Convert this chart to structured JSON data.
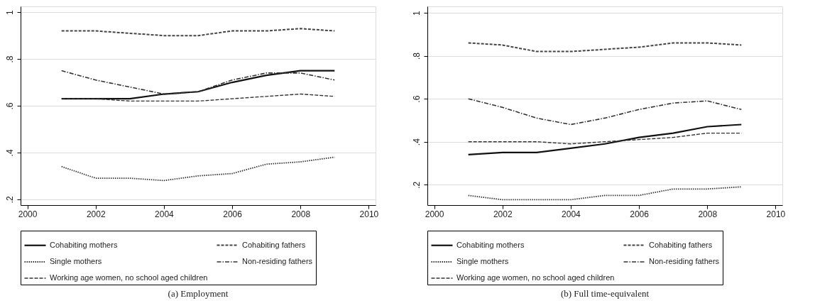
{
  "chart_data": [
    {
      "type": "line",
      "title": "(a) Employment",
      "x": [
        2001,
        2002,
        2003,
        2004,
        2005,
        2006,
        2007,
        2008,
        2009
      ],
      "xlim": [
        1999.8,
        2010.2
      ],
      "xticks": [
        2000,
        2002,
        2004,
        2006,
        2008,
        2010
      ],
      "ylim": [
        0.175,
        1.025
      ],
      "yticks": [
        {
          "value": 0.2,
          "label": ".2"
        },
        {
          "value": 0.4,
          "label": ".4"
        },
        {
          "value": 0.6,
          "label": ".6"
        },
        {
          "value": 0.8,
          "label": ".8"
        },
        1
      ],
      "grid": "y",
      "legend": "bottom",
      "series": [
        {
          "name": "Cohabiting mothers",
          "color": "#111111",
          "line_style": "solid",
          "values": [
            0.63,
            0.63,
            0.63,
            0.65,
            0.66,
            0.7,
            0.73,
            0.75,
            0.75
          ]
        },
        {
          "name": "Cohabiting fathers",
          "color": "#444444",
          "line_style": "dashed",
          "values": [
            0.92,
            0.92,
            0.91,
            0.9,
            0.9,
            0.92,
            0.92,
            0.93,
            0.92
          ]
        },
        {
          "name": "Single mothers",
          "color": "#333333",
          "line_style": "dotted",
          "values": [
            0.34,
            0.29,
            0.29,
            0.28,
            0.3,
            0.31,
            0.35,
            0.36,
            0.38
          ]
        },
        {
          "name": "Non-residing fathers",
          "color": "#333333",
          "line_style": "dashdot",
          "values": [
            0.75,
            0.71,
            0.68,
            0.65,
            0.66,
            0.71,
            0.74,
            0.74,
            0.71
          ]
        },
        {
          "name": "Working age women, no school aged children",
          "color": "#333333",
          "line_style": "longdash",
          "values": [
            0.63,
            0.63,
            0.62,
            0.62,
            0.62,
            0.63,
            0.64,
            0.65,
            0.64
          ]
        }
      ]
    },
    {
      "type": "line",
      "title": "(b) Full time-equivalent",
      "x": [
        2001,
        2002,
        2003,
        2004,
        2005,
        2006,
        2007,
        2008,
        2009
      ],
      "xlim": [
        1999.8,
        2010.2
      ],
      "xticks": [
        2000,
        2002,
        2004,
        2006,
        2008,
        2010
      ],
      "ylim": [
        0.105,
        1.03
      ],
      "yticks": [
        {
          "value": 0.2,
          "label": ".2"
        },
        {
          "value": 0.4,
          "label": ".4"
        },
        {
          "value": 0.6,
          "label": ".6"
        },
        {
          "value": 0.8,
          "label": ".8"
        },
        1
      ],
      "grid": "y",
      "legend": "bottom",
      "series": [
        {
          "name": "Cohabiting mothers",
          "color": "#111111",
          "line_style": "solid",
          "values": [
            0.34,
            0.35,
            0.35,
            0.37,
            0.39,
            0.42,
            0.44,
            0.47,
            0.48
          ]
        },
        {
          "name": "Cohabiting fathers",
          "color": "#444444",
          "line_style": "dashed",
          "values": [
            0.86,
            0.85,
            0.82,
            0.82,
            0.83,
            0.84,
            0.86,
            0.86,
            0.85
          ]
        },
        {
          "name": "Single mothers",
          "color": "#333333",
          "line_style": "dotted",
          "values": [
            0.15,
            0.13,
            0.13,
            0.13,
            0.15,
            0.15,
            0.18,
            0.18,
            0.19
          ]
        },
        {
          "name": "Non-residing fathers",
          "color": "#333333",
          "line_style": "dashdot",
          "values": [
            0.6,
            0.56,
            0.51,
            0.48,
            0.51,
            0.55,
            0.58,
            0.59,
            0.55
          ]
        },
        {
          "name": "Working age women, no school aged children",
          "color": "#333333",
          "line_style": "longdash",
          "values": [
            0.4,
            0.4,
            0.4,
            0.39,
            0.4,
            0.41,
            0.42,
            0.44,
            0.44
          ]
        }
      ]
    }
  ]
}
